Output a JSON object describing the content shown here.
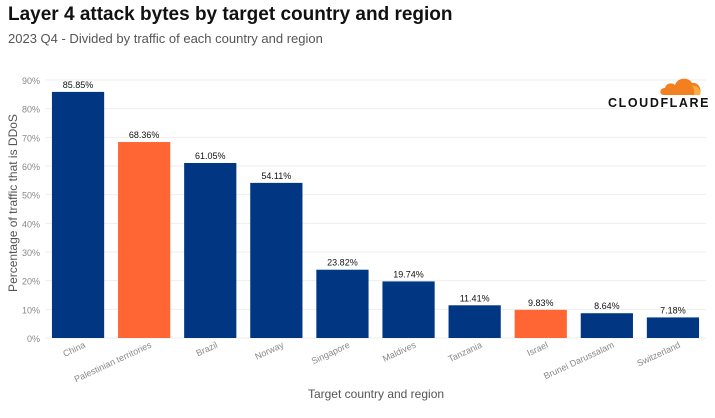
{
  "header": {
    "title": "Layer 4 attack bytes by target country and region",
    "subtitle": "2023 Q4 - Divided by traffic of each country and region"
  },
  "brand": {
    "logo_text": "CLOUDFLARE",
    "cloud_color": "#F38020"
  },
  "colors": {
    "bar_default": "#003682",
    "bar_highlight": "#FF6633",
    "grid": "#eeeeee",
    "axis_text": "#888888"
  },
  "chart_data": {
    "type": "bar",
    "title": "Layer 4 attack bytes by target country and region",
    "xlabel": "Target country and region",
    "ylabel": "Percentage of traffic that is DDoS",
    "ylim": [
      0,
      90
    ],
    "yticks": [
      "0%",
      "10%",
      "20%",
      "30%",
      "40%",
      "50%",
      "60%",
      "70%",
      "80%",
      "90%"
    ],
    "grid": true,
    "categories": [
      "China",
      "Palestinian territories",
      "Brazil",
      "Norway",
      "Singapore",
      "Maldives",
      "Tanzania",
      "Israel",
      "Brunei Darussalam",
      "Switzerland"
    ],
    "values": [
      85.85,
      68.36,
      61.05,
      54.11,
      23.82,
      19.74,
      11.41,
      9.83,
      8.64,
      7.18
    ],
    "data_labels": [
      "85.85%",
      "68.36%",
      "61.05%",
      "54.11%",
      "23.82%",
      "19.74%",
      "11.41%",
      "9.83%",
      "8.64%",
      "7.18%"
    ],
    "highlighted": [
      "Palestinian territories",
      "Israel"
    ]
  }
}
